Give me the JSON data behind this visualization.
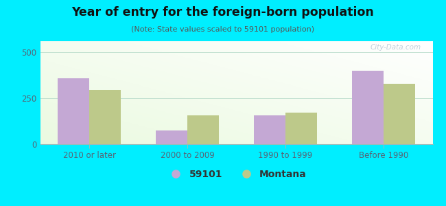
{
  "title": "Year of entry for the foreign-born population",
  "subtitle": "(Note: State values scaled to 59101 population)",
  "categories": [
    "2010 or later",
    "2000 to 2009",
    "1990 to 1999",
    "Before 1990"
  ],
  "values_59101": [
    360,
    75,
    155,
    400
  ],
  "values_montana": [
    295,
    155,
    170,
    330
  ],
  "color_59101": "#c4a8d4",
  "color_montana": "#bdc98a",
  "background_outer": "#00eeff",
  "background_plot_gradient_top": "#eefff0",
  "background_plot_gradient_bottom": "#d8f0d8",
  "ylim": [
    0,
    560
  ],
  "yticks": [
    0,
    250,
    500
  ],
  "bar_width": 0.32,
  "legend_label_59101": "59101",
  "legend_label_montana": "Montana",
  "watermark": "City-Data.com",
  "tick_color": "#556677",
  "title_color": "#111111",
  "subtitle_color": "#555555"
}
